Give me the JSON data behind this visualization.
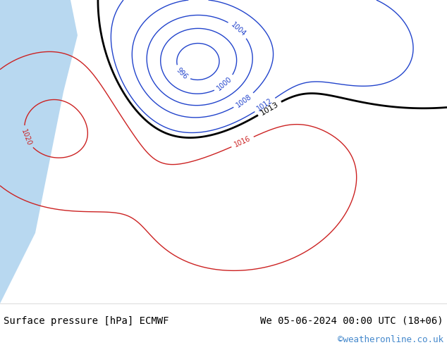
{
  "title_left": "Surface pressure [hPa] ECMWF",
  "title_right": "We 05-06-2024 00:00 UTC (18+06)",
  "copyright": "©weatheronline.co.uk",
  "bg_color": "#ffffff",
  "map_bg": "#c8e6a0",
  "sea_color": "#b0d0f0",
  "land_color": "#c8e6a0",
  "footer_bg": "#ffffff",
  "footer_text_color": "#000000",
  "copyright_color": "#4488cc",
  "font_size_footer": 10,
  "fig_width": 6.34,
  "fig_height": 4.9,
  "dpi": 100
}
